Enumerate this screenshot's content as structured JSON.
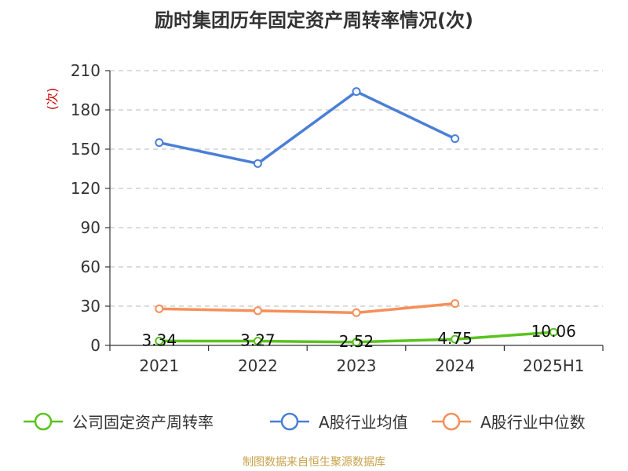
{
  "chart_data": {
    "type": "line",
    "title": "励时集团历年固定资产周转率情况(次)",
    "ylabel": "(次)",
    "categories": [
      "2021",
      "2022",
      "2023",
      "2024",
      "2025H1"
    ],
    "ylim": [
      0,
      210
    ],
    "yticks": [
      0,
      30,
      60,
      90,
      120,
      150,
      180,
      210
    ],
    "grid": true,
    "legend_position": "bottom",
    "series": [
      {
        "name": "公司固定资产周转率",
        "color": "#5ac31e",
        "values": [
          3.34,
          3.27,
          2.52,
          4.75,
          10.06
        ],
        "labels": [
          "3.34",
          "3.27",
          "2.52",
          "4.75",
          "10.06"
        ]
      },
      {
        "name": "A股行业均值",
        "color": "#4a7fd6",
        "values": [
          155,
          139,
          194,
          158,
          null
        ]
      },
      {
        "name": "A股行业中位数",
        "color": "#f59059",
        "values": [
          28,
          26.5,
          25,
          32,
          null
        ]
      }
    ]
  },
  "source": "制图数据来自恒生聚源数据库"
}
